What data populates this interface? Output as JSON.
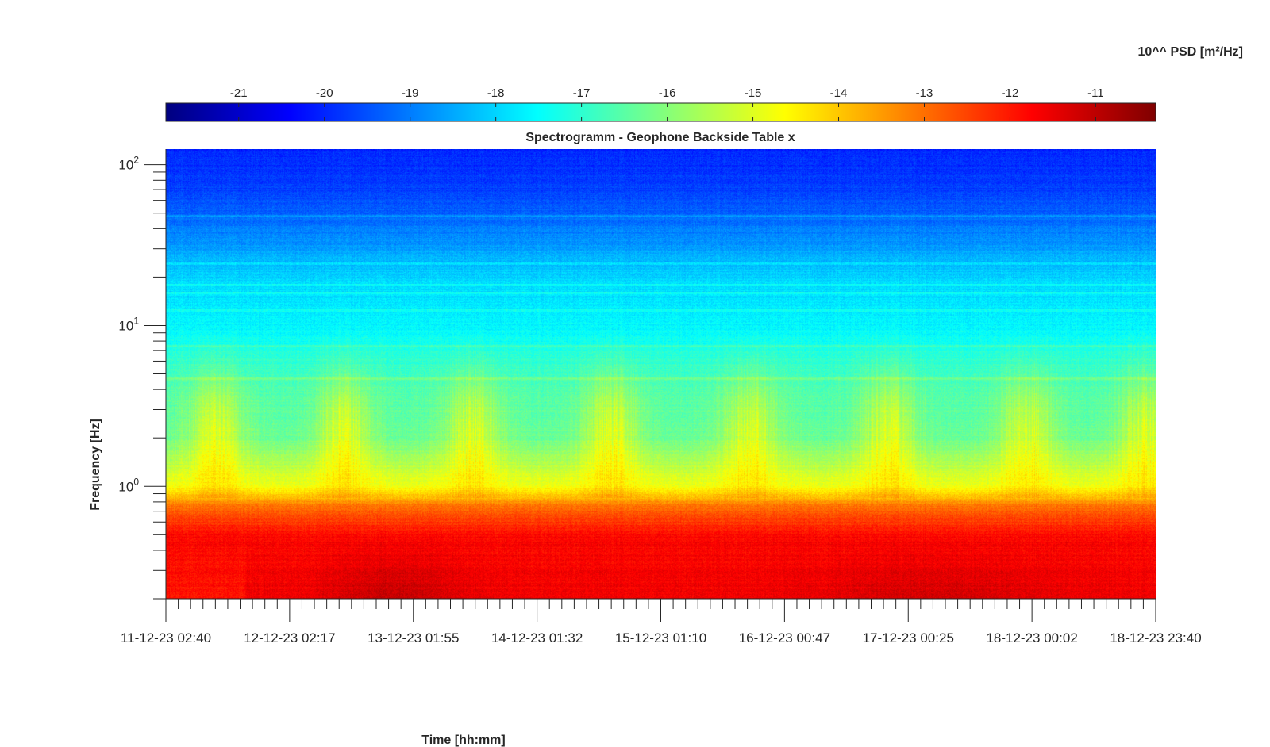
{
  "chart_data": {
    "type": "heatmap",
    "title": "Spectrogramm - Geophone Backside Table x",
    "xlabel": "Time [hh:mm]",
    "ylabel": "Frequency [Hz]",
    "x_tick_labels": [
      "11-12-23 02:40",
      "12-12-23 02:17",
      "13-12-23 01:55",
      "14-12-23 01:32",
      "15-12-23 01:10",
      "16-12-23 00:47",
      "17-12-23 00:25",
      "18-12-23 00:02",
      "18-12-23 23:40"
    ],
    "x_minor_ticks_between": 9,
    "y_scale": "log",
    "y_range_hz": [
      0.2,
      125
    ],
    "y_ticks": [
      {
        "value": 1,
        "base": "10",
        "exp": "0"
      },
      {
        "value": 10,
        "base": "10",
        "exp": "1"
      },
      {
        "value": 100,
        "base": "10",
        "exp": "2"
      }
    ],
    "colorbar": {
      "label": "10^^ PSD [m²/Hz]",
      "placement": "top",
      "range": [
        -21.85,
        -10.3
      ],
      "ticks": [
        "-21",
        "-20",
        "-19",
        "-18",
        "-17",
        "-16",
        "-15",
        "-14",
        "-13",
        "-12",
        "-11"
      ],
      "colormap": "jet"
    },
    "psd_profile": [
      {
        "freq_hz": 0.2,
        "log_psd": -11.6
      },
      {
        "freq_hz": 0.5,
        "log_psd": -11.8
      },
      {
        "freq_hz": 0.75,
        "log_psd": -13.0
      },
      {
        "freq_hz": 1.0,
        "log_psd": -14.8
      },
      {
        "freq_hz": 2.0,
        "log_psd": -16.3
      },
      {
        "freq_hz": 4.0,
        "log_psd": -16.6
      },
      {
        "freq_hz": 6.0,
        "log_psd": -17.0
      },
      {
        "freq_hz": 10.0,
        "log_psd": -17.6
      },
      {
        "freq_hz": 20.0,
        "log_psd": -18.0
      },
      {
        "freq_hz": 40.0,
        "log_psd": -19.0
      },
      {
        "freq_hz": 70.0,
        "log_psd": -19.7
      },
      {
        "freq_hz": 125.0,
        "log_psd": -20.0
      }
    ],
    "daytime_activity_centers": [
      0.05,
      0.18,
      0.31,
      0.45,
      0.59,
      0.73,
      0.87,
      0.99
    ],
    "spectral_lines_hz": [
      4.7,
      7.5,
      12.5,
      16,
      18,
      24.5,
      48
    ],
    "grid": false
  }
}
